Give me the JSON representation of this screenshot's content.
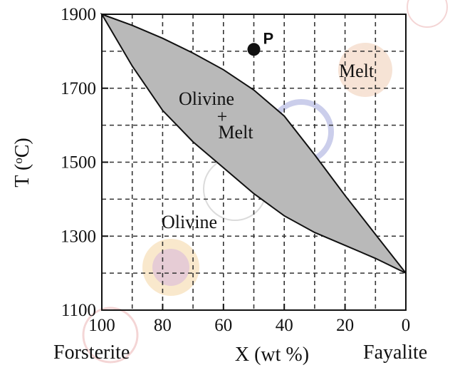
{
  "chart_data": {
    "type": "phase-diagram",
    "xlabel": "X (wt %)",
    "ylabel": "T (°C)",
    "x_ticks": [
      100,
      80,
      60,
      40,
      20,
      0
    ],
    "y_ticks": [
      1900,
      1700,
      1500,
      1300,
      1100
    ],
    "xlim": [
      100,
      0
    ],
    "ylim": [
      1100,
      1900
    ],
    "end_members": {
      "left": "Forsterite",
      "right": "Fayalite"
    },
    "regions": {
      "melt": "Melt",
      "two_phase_top": "Olivine",
      "two_phase_plus": "+",
      "two_phase_bottom": "Melt",
      "solid": "Olivine"
    },
    "point": {
      "label": "P",
      "x": 50,
      "y": 1805
    },
    "liquidus": [
      [
        100,
        1900
      ],
      [
        90,
        1870
      ],
      [
        80,
        1835
      ],
      [
        70,
        1795
      ],
      [
        60,
        1750
      ],
      [
        50,
        1695
      ],
      [
        40,
        1625
      ],
      [
        30,
        1520
      ],
      [
        20,
        1410
      ],
      [
        10,
        1305
      ],
      [
        0,
        1200
      ]
    ],
    "solidus": [
      [
        100,
        1900
      ],
      [
        95,
        1830
      ],
      [
        90,
        1760
      ],
      [
        80,
        1640
      ],
      [
        70,
        1555
      ],
      [
        60,
        1485
      ],
      [
        50,
        1415
      ],
      [
        40,
        1355
      ],
      [
        30,
        1310
      ],
      [
        20,
        1275
      ],
      [
        10,
        1240
      ],
      [
        0,
        1200
      ]
    ],
    "grid": true,
    "colors": {
      "two_phase_fill": "#b9b9b9",
      "line": "#111111"
    }
  }
}
